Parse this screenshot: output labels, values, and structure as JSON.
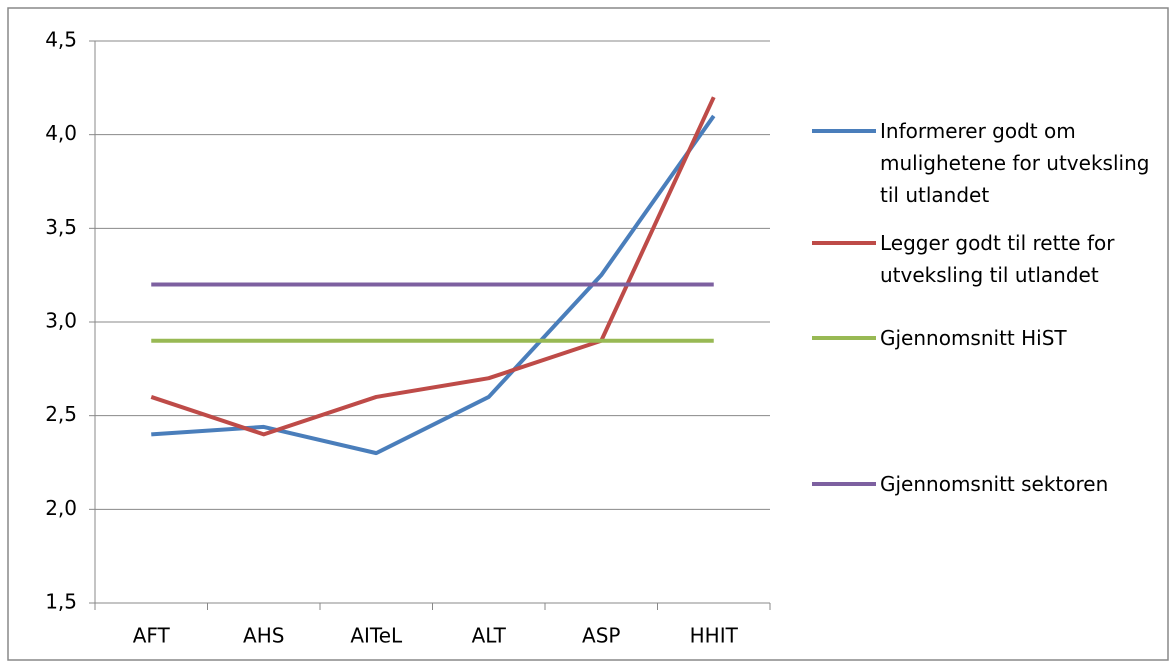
{
  "chart_data": {
    "type": "line",
    "categories": [
      "AFT",
      "AHS",
      "AITeL",
      "ALT",
      "ASP",
      "HHIT"
    ],
    "series": [
      {
        "name": "Informerer godt om mulighetene for utveksling til utlandet",
        "color": "#4a7ebb",
        "values": [
          2.4,
          2.44,
          2.3,
          2.6,
          3.25,
          4.1
        ]
      },
      {
        "name": "Legger godt til rette for utveksling til utlandet",
        "color": "#be4b48",
        "values": [
          2.6,
          2.4,
          2.6,
          2.7,
          2.9,
          4.2
        ]
      },
      {
        "name": "Gjennomsnitt HiST",
        "color": "#98b954",
        "values": [
          2.9,
          2.9,
          2.9,
          2.9,
          2.9,
          2.9
        ]
      },
      {
        "name": "Gjennomsnitt sektoren",
        "color": "#7d60a0",
        "values": [
          3.2,
          3.2,
          3.2,
          3.2,
          3.2,
          3.2
        ]
      }
    ],
    "ylim": [
      1.5,
      4.5
    ],
    "yticks": [
      {
        "value": 1.5,
        "label": "1,5"
      },
      {
        "value": 2.0,
        "label": "2,0"
      },
      {
        "value": 2.5,
        "label": "2,5"
      },
      {
        "value": 3.0,
        "label": "3,0"
      },
      {
        "value": 3.5,
        "label": "3,5"
      },
      {
        "value": 4.0,
        "label": "4,0"
      },
      {
        "value": 4.5,
        "label": "4,5"
      }
    ],
    "grid": true,
    "legend": "right"
  }
}
